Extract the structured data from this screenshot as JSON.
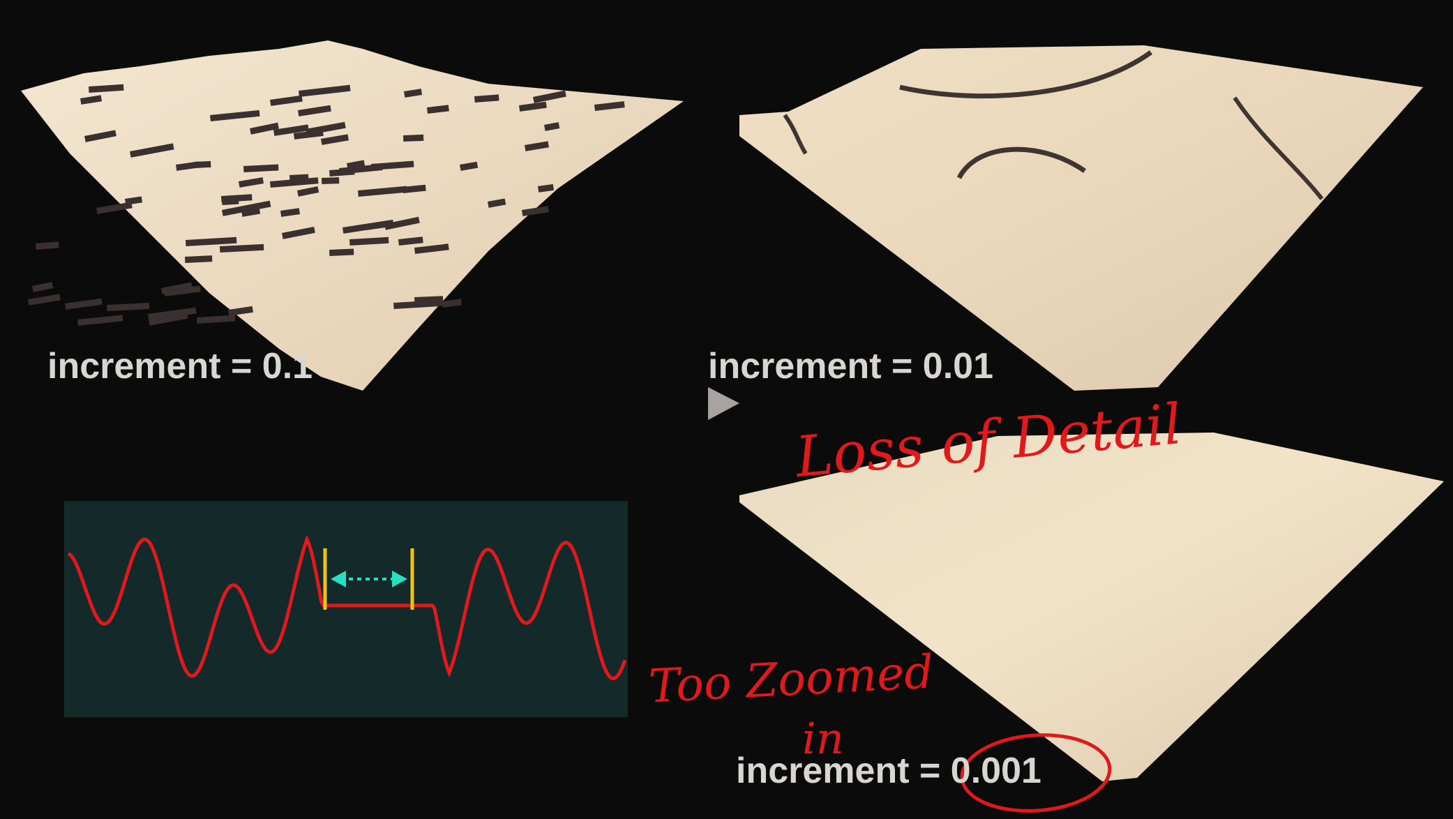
{
  "panels": [
    {
      "label": "increment = 0.1"
    },
    {
      "label": "increment = 0.01"
    },
    {
      "label": "increment = ",
      "value": "0.001"
    }
  ],
  "annotations": {
    "loss_of_detail": "Loss of Detail",
    "too_zoomed_line1": "Too Zoomed",
    "too_zoomed_line2": "in"
  },
  "colors": {
    "background": "#0b0b0b",
    "terrain_light": "#eedcc4",
    "terrain_dark": "#3a3030",
    "wave": "#e0191c",
    "marker": "#f2c21b",
    "arrow": "#27e0c0",
    "wave_panel_bg": "#13292a",
    "ink": "#e01a1a"
  }
}
